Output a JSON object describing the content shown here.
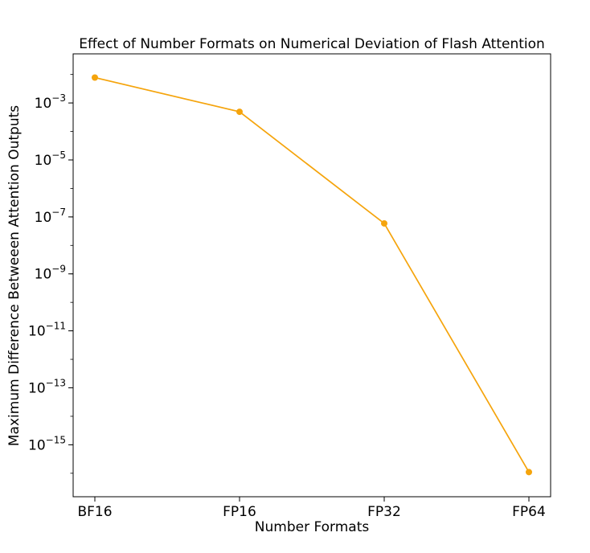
{
  "chart_data": {
    "type": "line",
    "title": "Effect of Number Formats on Numerical Deviation of Flash Attention",
    "xlabel": "Number Formats",
    "ylabel": "Maximum Difference Betweeen Attention Outputs",
    "y_scale": "log",
    "categories": [
      "BF16",
      "FP16",
      "FP32",
      "FP64"
    ],
    "y_ticks": [
      {
        "base": "10",
        "exp": "−3",
        "value": 0.001
      },
      {
        "base": "10",
        "exp": "−5",
        "value": 1e-05
      },
      {
        "base": "10",
        "exp": "−7",
        "value": 1e-07
      },
      {
        "base": "10",
        "exp": "−9",
        "value": 1e-09
      },
      {
        "base": "10",
        "exp": "−11",
        "value": 1e-11
      },
      {
        "base": "10",
        "exp": "−13",
        "value": 1e-13
      },
      {
        "base": "10",
        "exp": "−15",
        "value": 1e-15
      }
    ],
    "ylim": [
      1.5e-17,
      0.053
    ],
    "series": [
      {
        "values": [
          0.0078,
          0.00049,
          5.9e-08,
          1.1e-16
        ],
        "color": "#f5a40c"
      }
    ],
    "grid": false,
    "legend": "none"
  }
}
